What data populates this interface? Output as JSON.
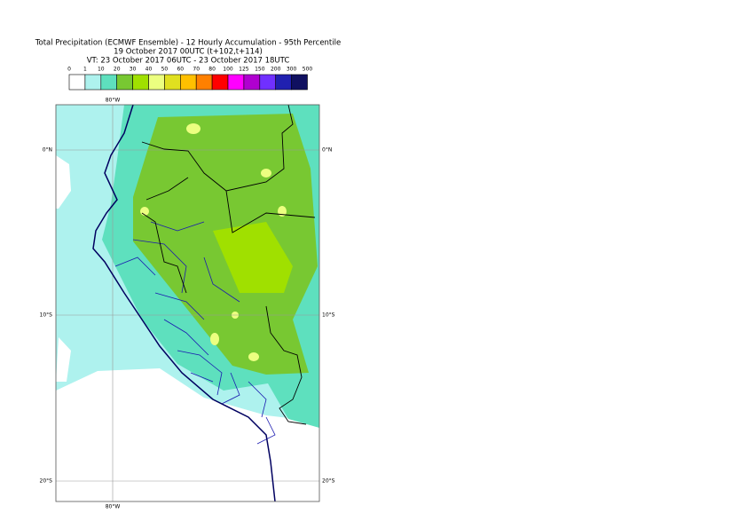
{
  "header": {
    "title": "Total Precipitation (ECMWF Ensemble) - 12 Hourly Accumulation - 95th Percentile",
    "base_time": "19 October 2017 00UTC (t+102,t+114)",
    "valid_time": "VT: 23 October 2017 06UTC - 23 October 2017 18UTC"
  },
  "legend": {
    "labels": [
      "0",
      "1",
      "10",
      "20",
      "30",
      "40",
      "50",
      "60",
      "70",
      "80",
      "100",
      "125",
      "150",
      "200",
      "300",
      "500"
    ],
    "colors": [
      "#ffffff",
      "#aef2ee",
      "#5ee0be",
      "#78c832",
      "#a0e000",
      "#ecff80",
      "#e0e020",
      "#ffc000",
      "#ff8000",
      "#ff0000",
      "#ff00ff",
      "#b000d0",
      "#7030ff",
      "#2020b0",
      "#101060"
    ]
  },
  "map": {
    "top_labels": [
      "80°W"
    ],
    "bottom_labels": [
      "80°W"
    ],
    "left_labels": [
      "0°N",
      "10°S",
      "20°S"
    ],
    "right_labels": [
      "0°N",
      "10°S",
      "20°S"
    ]
  }
}
